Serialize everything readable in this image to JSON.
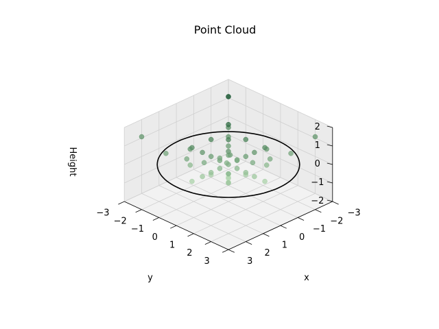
{
  "chart_data": {
    "type": "scatter",
    "projection": "3d",
    "title": "Point Cloud",
    "xlabel": "x",
    "ylabel": "y",
    "zlabel": "Height",
    "xlim": [
      -3,
      3
    ],
    "ylim": [
      -3,
      3
    ],
    "zlim": [
      -2,
      2
    ],
    "x_ticks": [
      "−3",
      "−2",
      "−1",
      "0",
      "1",
      "2",
      "3"
    ],
    "y_ticks": [
      "−3",
      "−2",
      "−1",
      "0",
      "1",
      "2",
      "3"
    ],
    "z_ticks": [
      "−2",
      "−1",
      "0",
      "1",
      "2"
    ],
    "grid": true,
    "colormap": "Greens",
    "ring": {
      "radius": 2.0,
      "z": 0,
      "color": "#000000"
    },
    "colors": {
      "pane": "#f2f2f2",
      "pane_dark": "#ebebeb",
      "grid": "#d0d0d0",
      "point_dark": "#00441b",
      "point_light": "#c7e9c0"
    },
    "points": [
      [
        0,
        0,
        2
      ],
      [
        0,
        0,
        1.5
      ],
      [
        0,
        0,
        1
      ],
      [
        0,
        0,
        0.5
      ],
      [
        0,
        0,
        0
      ],
      [
        0,
        0,
        -0.5
      ],
      [
        0,
        0,
        -1
      ],
      [
        2.1,
        0,
        0
      ],
      [
        1.5,
        0,
        0
      ],
      [
        1,
        0,
        0
      ],
      [
        0.5,
        0,
        0
      ],
      [
        -0.5,
        0,
        0
      ],
      [
        -1,
        0,
        0
      ],
      [
        -1.5,
        0,
        0
      ],
      [
        -2.1,
        0,
        0
      ],
      [
        0,
        2.1,
        0
      ],
      [
        0,
        1.5,
        0
      ],
      [
        0,
        1,
        0
      ],
      [
        0,
        0.5,
        0
      ],
      [
        0,
        -0.5,
        0
      ],
      [
        0,
        -1,
        0
      ],
      [
        0,
        -1.5,
        0
      ],
      [
        0,
        -2.1,
        0
      ],
      [
        1.8,
        1.8,
        0.6
      ],
      [
        1.8,
        -1.8,
        0.6
      ],
      [
        -1.8,
        1.8,
        0.6
      ],
      [
        -1.8,
        -1.8,
        0.6
      ],
      [
        1.2,
        1.2,
        0.3
      ],
      [
        1.2,
        -1.2,
        0.3
      ],
      [
        -1.2,
        1.2,
        0.3
      ],
      [
        -1.2,
        -1.2,
        0.3
      ],
      [
        0.7,
        0.7,
        0.1
      ],
      [
        0.7,
        -0.7,
        0.1
      ],
      [
        -0.7,
        0.7,
        0.1
      ],
      [
        -0.7,
        -0.7,
        0.1
      ],
      [
        2.5,
        2.5,
        1.5
      ],
      [
        2.5,
        -2.5,
        1.5
      ],
      [
        -2.5,
        2.5,
        1.5
      ],
      [
        -2.5,
        -2.5,
        1.5
      ],
      [
        1.6,
        0.6,
        0.4
      ],
      [
        -1.6,
        0.6,
        0.4
      ],
      [
        1.6,
        -0.6,
        0.4
      ],
      [
        -1.6,
        -0.6,
        0.4
      ],
      [
        0.6,
        1.6,
        0.4
      ],
      [
        -0.6,
        1.6,
        0.4
      ],
      [
        0.6,
        -1.6,
        0.4
      ],
      [
        -0.6,
        -1.6,
        0.4
      ],
      [
        0.3,
        0.2,
        0.3
      ],
      [
        -0.3,
        -0.2,
        0.3
      ],
      [
        0.2,
        -0.3,
        0.3
      ],
      [
        -0.2,
        0.3,
        0.3
      ]
    ]
  }
}
